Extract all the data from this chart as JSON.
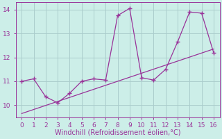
{
  "xlabel": "Windchill (Refroidissement éolien,°C)",
  "xlim": [
    -0.5,
    16.5
  ],
  "ylim": [
    9.5,
    14.3
  ],
  "yticks": [
    10,
    11,
    12,
    13,
    14
  ],
  "xticks": [
    0,
    1,
    2,
    3,
    4,
    5,
    6,
    7,
    8,
    9,
    10,
    11,
    12,
    13,
    14,
    15,
    16
  ],
  "line_x": [
    0,
    1,
    2,
    3,
    4,
    5,
    6,
    7,
    8,
    9,
    10,
    11,
    12,
    13,
    14,
    15,
    16
  ],
  "line_y": [
    11.0,
    11.1,
    10.35,
    10.1,
    10.5,
    11.0,
    11.1,
    11.05,
    13.75,
    14.05,
    11.15,
    11.05,
    11.5,
    12.65,
    13.9,
    13.85,
    12.2
  ],
  "trend_x": [
    0,
    16
  ],
  "trend_y": [
    9.65,
    12.35
  ],
  "color": "#993399",
  "bg_color": "#cceee8",
  "grid_color": "#aacccc",
  "tick_fontsize": 6.5,
  "label_fontsize": 7
}
